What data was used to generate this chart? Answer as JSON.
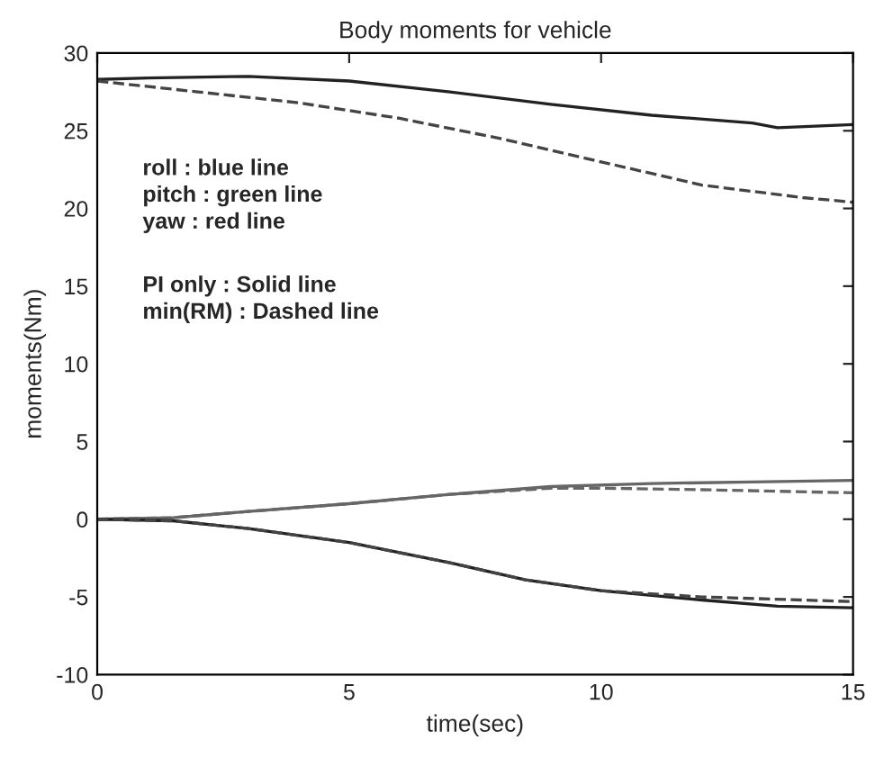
{
  "chart_data": {
    "type": "line",
    "title": "Body moments for vehicle",
    "xlabel": "time(sec)",
    "ylabel": "moments(Nm)",
    "xlim": [
      0,
      15
    ],
    "xticks": [
      0,
      5,
      10,
      15
    ],
    "ylim": [
      -10,
      30
    ],
    "yticks": [
      -10,
      -5,
      0,
      5,
      10,
      15,
      20,
      25,
      30
    ],
    "grid": false,
    "legend": false,
    "annotations": [
      "roll : blue line\npitch : green line\nyaw : red line",
      "PI only : Solid line\nmin(RM) : Dashed line"
    ],
    "series": [
      {
        "color": "#222222",
        "line_style": "solid",
        "x": [
          0,
          1,
          3,
          5,
          7,
          9,
          11,
          13,
          13.5,
          15
        ],
        "values": [
          28.3,
          28.4,
          28.5,
          28.2,
          27.5,
          26.7,
          26,
          25.5,
          25.2,
          25.4
        ]
      },
      {
        "color": "#444444",
        "line_style": "dashed",
        "x": [
          0,
          2,
          4,
          6,
          8,
          10,
          12,
          14,
          15
        ],
        "values": [
          28.2,
          27.5,
          26.8,
          25.8,
          24.5,
          23,
          21.5,
          20.7,
          20.4
        ]
      },
      {
        "color": "#666666",
        "line_style": "solid",
        "x": [
          0,
          1.5,
          3,
          5,
          7,
          9,
          11,
          13,
          15
        ],
        "values": [
          0,
          0.1,
          0.5,
          1,
          1.6,
          2.1,
          2.3,
          2.4,
          2.5
        ]
      },
      {
        "color": "#666666",
        "line_style": "dashed",
        "x": [
          0,
          1.5,
          3,
          5,
          7,
          9,
          10,
          12,
          15
        ],
        "values": [
          0,
          0.1,
          0.5,
          1,
          1.6,
          2,
          2,
          1.9,
          1.7
        ]
      },
      {
        "color": "#222222",
        "line_style": "solid",
        "x": [
          0,
          1.5,
          3,
          5,
          7,
          8.5,
          10,
          12,
          13.5,
          15
        ],
        "values": [
          0,
          -0.1,
          -0.6,
          -1.5,
          -2.8,
          -3.9,
          -4.6,
          -5.2,
          -5.6,
          -5.7
        ]
      },
      {
        "color": "#444444",
        "line_style": "dashed",
        "x": [
          0,
          1.5,
          3,
          5,
          7,
          8.5,
          10,
          12,
          14,
          15
        ],
        "values": [
          0,
          -0.1,
          -0.6,
          -1.5,
          -2.8,
          -3.9,
          -4.6,
          -5,
          -5.2,
          -5.3
        ]
      }
    ]
  }
}
